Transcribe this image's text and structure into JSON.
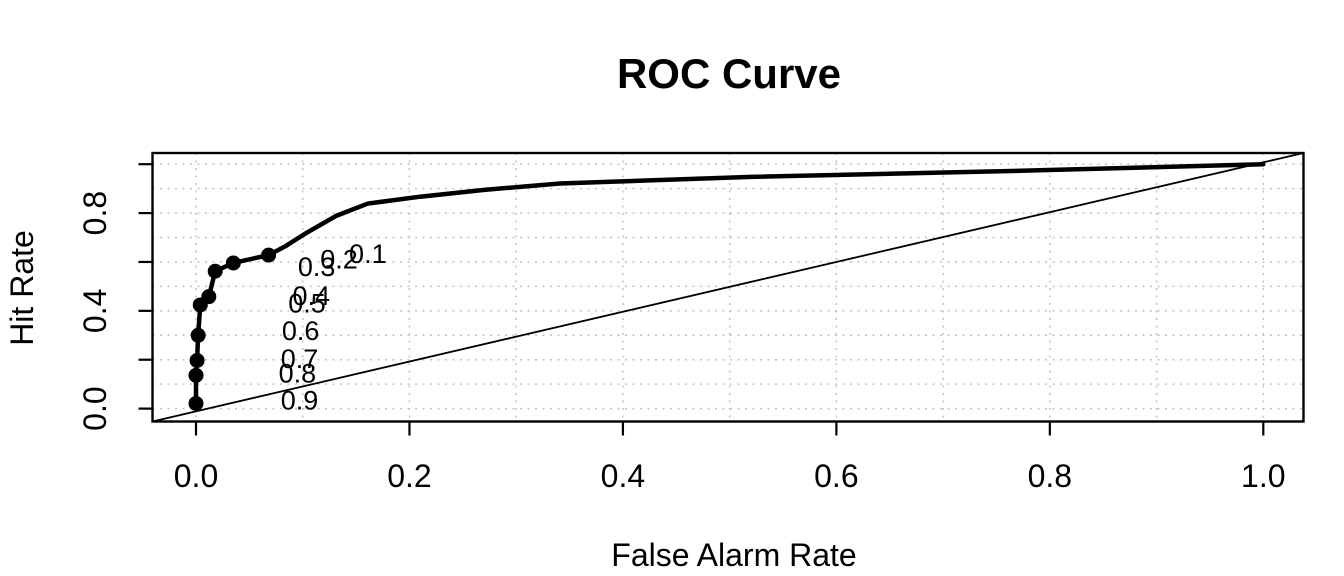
{
  "figure": {
    "background": "#ffffff",
    "foreground": "#000000",
    "grid_color": "#c2c2c2"
  },
  "chart_data": {
    "type": "line",
    "title": "ROC Curve",
    "xlabel": "False Alarm Rate",
    "ylabel": "Hit Rate",
    "xlim": [
      0,
      1
    ],
    "ylim": [
      0,
      1
    ],
    "grid": {
      "on": true,
      "step_x": 0.1,
      "step_y": 0.1,
      "style": "dotted"
    },
    "legend": "none",
    "x_ticks": [
      0,
      0.2,
      0.4,
      0.6,
      0.8,
      1.0
    ],
    "x_tick_labels": [
      "0.0",
      "0.2",
      "0.4",
      "0.6",
      "0.8",
      "1.0"
    ],
    "y_ticks": [
      0,
      0.2,
      0.4,
      0.6,
      0.8,
      1.0
    ],
    "y_tick_labels": [
      "0.0",
      "",
      "0.4",
      "",
      "0.8",
      ""
    ],
    "reference_line": {
      "name": "chance-diagonal",
      "from": [
        0,
        0
      ],
      "to": [
        1,
        1
      ]
    },
    "roc_curve": {
      "x": [
        0.0,
        0.0,
        0.001,
        0.002,
        0.004,
        0.012,
        0.018,
        0.035,
        0.068,
        0.084,
        0.102,
        0.131,
        0.161,
        0.21,
        0.27,
        0.341,
        0.52,
        0.79,
        1.0
      ],
      "y": [
        0.021,
        0.136,
        0.197,
        0.3,
        0.424,
        0.458,
        0.562,
        0.596,
        0.628,
        0.665,
        0.715,
        0.788,
        0.839,
        0.867,
        0.895,
        0.921,
        0.948,
        0.975,
        1.0
      ]
    },
    "threshold_points": [
      {
        "threshold": "0.9",
        "x": 0.0,
        "y": 0.021
      },
      {
        "threshold": "0.8",
        "x": 0.0,
        "y": 0.136
      },
      {
        "threshold": "0.7",
        "x": 0.001,
        "y": 0.197
      },
      {
        "threshold": "0.6",
        "x": 0.002,
        "y": 0.3
      },
      {
        "threshold": "0.5",
        "x": 0.004,
        "y": 0.424
      },
      {
        "threshold": "0.4",
        "x": 0.012,
        "y": 0.458
      },
      {
        "threshold": "0.3",
        "x": 0.018,
        "y": 0.562
      },
      {
        "threshold": "0.2",
        "x": 0.035,
        "y": 0.596
      },
      {
        "threshold": "0.1",
        "x": 0.068,
        "y": 0.628
      }
    ],
    "threshold_labels": [
      {
        "text": "0.1",
        "x": 0.161,
        "y": 0.633
      },
      {
        "text": "0.2",
        "x": 0.134,
        "y": 0.611
      },
      {
        "text": "0.3",
        "x": 0.113,
        "y": 0.58
      },
      {
        "text": "0.4",
        "x": 0.108,
        "y": 0.461
      },
      {
        "text": "0.5",
        "x": 0.104,
        "y": 0.43
      },
      {
        "text": "0.6",
        "x": 0.098,
        "y": 0.318
      },
      {
        "text": "0.7",
        "x": 0.097,
        "y": 0.202
      },
      {
        "text": "0.8",
        "x": 0.095,
        "y": 0.143
      },
      {
        "text": "0.9",
        "x": 0.097,
        "y": 0.034
      }
    ]
  }
}
